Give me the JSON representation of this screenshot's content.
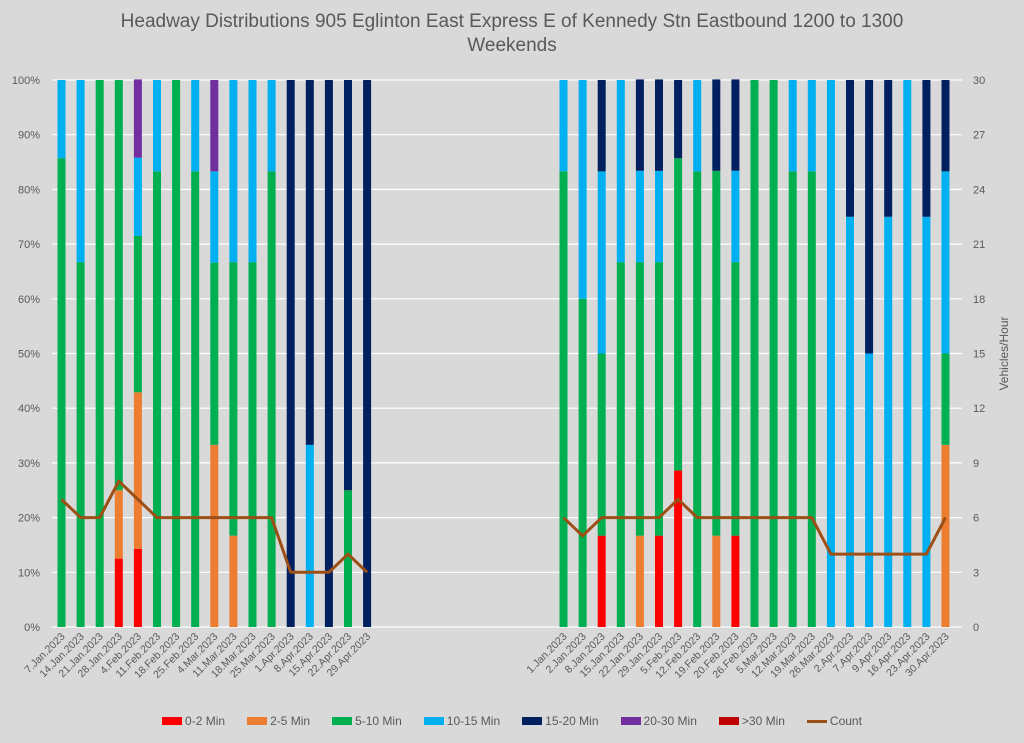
{
  "chart_data": {
    "type": "bar",
    "subtype": "stacked-100-percent with line overlay",
    "title": "Headway Distributions 905 Eglinton East Express  E of Kennedy Stn Eastbound 1200 to 1300",
    "subtitle": "Weekends",
    "ylabel_left": "",
    "ylabel_right": "Vehicles/Hour",
    "ylim_left": [
      0,
      100
    ],
    "ylim_right": [
      0,
      30
    ],
    "yticks_left": [
      "0%",
      "10%",
      "20%",
      "30%",
      "40%",
      "50%",
      "60%",
      "70%",
      "80%",
      "90%",
      "100%"
    ],
    "yticks_right": [
      "0",
      "3",
      "6",
      "9",
      "12",
      "15",
      "18",
      "21",
      "24",
      "27",
      "30"
    ],
    "grid": true,
    "legend_position": "bottom",
    "series_meta": [
      {
        "name": "0-2 Min",
        "color": "#ff0000"
      },
      {
        "name": "2-5 Min",
        "color": "#ed7d31"
      },
      {
        "name": "5-10 Min",
        "color": "#00b050"
      },
      {
        "name": "10-15 Min",
        "color": "#00b0f0"
      },
      {
        "name": "15-20 Min",
        "color": "#002060"
      },
      {
        "name": "20-30 Min",
        "color": "#7030a0"
      },
      {
        "name": ">30 Min",
        "color": "#c00000"
      }
    ],
    "line_meta": {
      "name": "Count",
      "color": "#9c4f16",
      "axis": "right"
    },
    "groups": [
      {
        "name": "2023 period A",
        "categories": [
          "7.Jan.2023",
          "14.Jan.2023",
          "21.Jan.2023",
          "28.Jan.2023",
          "4.Feb.2023",
          "11.Feb.2023",
          "18.Feb.2023",
          "25.Feb.2023",
          "4.Mar.2023",
          "11.Mar.2023",
          "18.Mar.2023",
          "25.Mar.2023",
          "1.Apr.2023",
          "8.Apr.2023",
          "15.Apr.2023",
          "22.Apr.2023",
          "29.Apr.2023"
        ],
        "series": [
          {
            "name": "0-2 Min",
            "values": [
              0,
              0,
              0,
              12.5,
              14.3,
              0,
              0,
              0,
              0,
              0,
              0,
              0,
              0,
              0,
              0,
              0,
              0
            ]
          },
          {
            "name": "2-5 Min",
            "values": [
              0,
              0,
              0,
              12.5,
              28.6,
              0,
              0,
              0,
              33.3,
              16.7,
              0,
              0,
              0,
              0,
              0,
              0,
              0
            ]
          },
          {
            "name": "5-10 Min",
            "values": [
              85.7,
              66.7,
              100,
              75,
              28.6,
              83.3,
              100,
              83.3,
              33.3,
              50,
              66.7,
              83.3,
              0,
              0,
              0,
              25,
              0
            ]
          },
          {
            "name": "10-15 Min",
            "values": [
              14.3,
              33.3,
              0,
              0,
              14.3,
              16.7,
              0,
              16.7,
              16.7,
              33.3,
              33.3,
              16.7,
              0,
              33.3,
              0,
              0,
              0
            ]
          },
          {
            "name": "15-20 Min",
            "values": [
              0,
              0,
              0,
              0,
              0,
              0,
              0,
              0,
              0,
              0,
              0,
              0,
              100,
              66.7,
              100,
              75,
              100
            ]
          },
          {
            "name": "20-30 Min",
            "values": [
              0,
              0,
              0,
              0,
              14.3,
              0,
              0,
              0,
              16.7,
              0,
              0,
              0,
              0,
              0,
              0,
              0,
              0
            ]
          },
          {
            "name": ">30 Min",
            "values": [
              0,
              0,
              0,
              0,
              0,
              0,
              0,
              0,
              0,
              0,
              0,
              0,
              0,
              0,
              0,
              0,
              0
            ]
          }
        ],
        "count": [
          7,
          6,
          6,
          8,
          7,
          6,
          6,
          6,
          6,
          6,
          6,
          6,
          3,
          3,
          3,
          4,
          3
        ]
      },
      {
        "name": "2023 period B",
        "categories": [
          "1.Jan.2023",
          "2.Jan.2023",
          "8.Jan.2023",
          "15.Jan.2023",
          "22.Jan.2023",
          "29.Jan.2023",
          "5.Feb.2023",
          "12.Feb.2023",
          "19.Feb.2023",
          "20.Feb.2023",
          "26.Feb.2023",
          "5.Mar.2023",
          "12.Mar.2023",
          "19.Mar.2023",
          "26.Mar.2023",
          "2.Apr.2023",
          "7.Apr.2023",
          "9.Apr.2023",
          "16.Apr.2023",
          "23.Apr.2023",
          "30.Apr.2023"
        ],
        "series": [
          {
            "name": "0-2 Min",
            "values": [
              0,
              0,
              16.7,
              0,
              0,
              16.7,
              28.6,
              0,
              0,
              16.7,
              0,
              0,
              0,
              0,
              0,
              0,
              0,
              0,
              0,
              0,
              0
            ]
          },
          {
            "name": "2-5 Min",
            "values": [
              0,
              0,
              0,
              0,
              16.7,
              0,
              0,
              0,
              16.7,
              0,
              0,
              0,
              0,
              0,
              0,
              0,
              0,
              0,
              0,
              0,
              33.3
            ]
          },
          {
            "name": "5-10 Min",
            "values": [
              83.3,
              60,
              33.3,
              66.7,
              50,
              50,
              57.1,
              83.3,
              66.7,
              50,
              100,
              100,
              83.3,
              83.3,
              0,
              0,
              0,
              0,
              0,
              0,
              16.7
            ]
          },
          {
            "name": "10-15 Min",
            "values": [
              16.7,
              40,
              33.3,
              33.3,
              16.7,
              16.7,
              0,
              16.7,
              0,
              16.7,
              0,
              0,
              16.7,
              16.7,
              100,
              75,
              50,
              75,
              100,
              75,
              33.3
            ]
          },
          {
            "name": "15-20 Min",
            "values": [
              0,
              0,
              16.7,
              0,
              16.7,
              16.7,
              14.3,
              0,
              16.7,
              16.7,
              0,
              0,
              0,
              0,
              0,
              25,
              50,
              25,
              0,
              25,
              16.7
            ]
          },
          {
            "name": "20-30 Min",
            "values": [
              0,
              0,
              0,
              0,
              0,
              0,
              0,
              0,
              0,
              0,
              0,
              0,
              0,
              0,
              0,
              0,
              0,
              0,
              0,
              0,
              0
            ]
          },
          {
            "name": ">30 Min",
            "values": [
              0,
              0,
              0,
              0,
              0,
              0,
              0,
              0,
              0,
              0,
              0,
              0,
              0,
              0,
              0,
              0,
              0,
              0,
              0,
              0,
              0
            ]
          }
        ],
        "count": [
          6,
          5,
          6,
          6,
          6,
          6,
          7,
          6,
          6,
          6,
          6,
          6,
          6,
          6,
          4,
          4,
          4,
          4,
          4,
          4,
          6
        ]
      }
    ]
  }
}
